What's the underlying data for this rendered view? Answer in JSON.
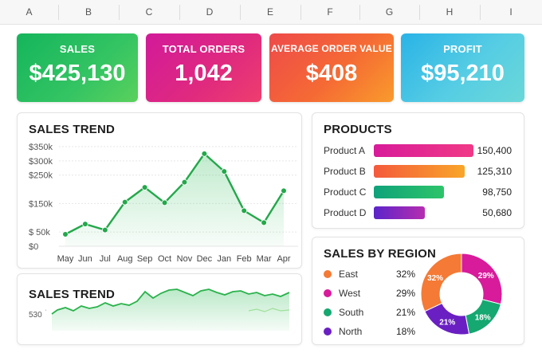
{
  "columns": [
    "A",
    "B",
    "C",
    "D",
    "E",
    "F",
    "G",
    "H",
    "I"
  ],
  "kpis": {
    "sales": {
      "label": "SALES",
      "value": "$425,130"
    },
    "orders": {
      "label": "TOTAL ORDERS",
      "value": "1,042"
    },
    "aov": {
      "label": "AVERAGE ORDER VALUE",
      "value": "$408"
    },
    "profit": {
      "label": "PROFIT",
      "value": "$95,210"
    }
  },
  "sales_trend": {
    "title": "SALES TREND"
  },
  "sales_trend_mini": {
    "title": "SALES TREND",
    "ytick": "530"
  },
  "products": {
    "title": "PRODUCTS",
    "items": [
      {
        "name": "Product A",
        "value": "150,400"
      },
      {
        "name": "Product B",
        "value": "125,310"
      },
      {
        "name": "Product C",
        "value": "98,750"
      },
      {
        "name": "Product D",
        "value": "50,680"
      }
    ]
  },
  "region": {
    "title": "SALES BY REGION",
    "items": [
      {
        "name": "East",
        "pct": "32%"
      },
      {
        "name": "West",
        "pct": "29%"
      },
      {
        "name": "South",
        "pct": "21%"
      },
      {
        "name": "North",
        "pct": "18%"
      }
    ]
  },
  "colors": {
    "green": "#2bb24c",
    "magenta": "#d81b9a",
    "orange": "#f47a35",
    "purple": "#6a1fc2",
    "teal": "#15a870"
  },
  "chart_data": [
    {
      "type": "line",
      "title": "SALES TREND",
      "categories": [
        "May",
        "Jun",
        "Jul",
        "Aug",
        "Sep",
        "Oct",
        "Nov",
        "Dec",
        "Jan",
        "Feb",
        "Mar",
        "Apr"
      ],
      "values": [
        42,
        78,
        57,
        155,
        207,
        153,
        225,
        325,
        263,
        125,
        83,
        195
      ],
      "y_unit": "$k",
      "yticks": [
        "$0",
        "$ 50k",
        "$150k",
        "$250k",
        "$300k",
        "$350k"
      ],
      "ylim": [
        0,
        350
      ],
      "grid": true
    },
    {
      "type": "bar",
      "title": "PRODUCTS",
      "categories": [
        "Product A",
        "Product B",
        "Product C",
        "Product D"
      ],
      "values": [
        150400,
        125310,
        98750,
        50680
      ]
    },
    {
      "type": "pie",
      "title": "SALES BY REGION",
      "categories": [
        "East",
        "West",
        "South",
        "North"
      ],
      "values": [
        32,
        29,
        21,
        18
      ]
    }
  ]
}
